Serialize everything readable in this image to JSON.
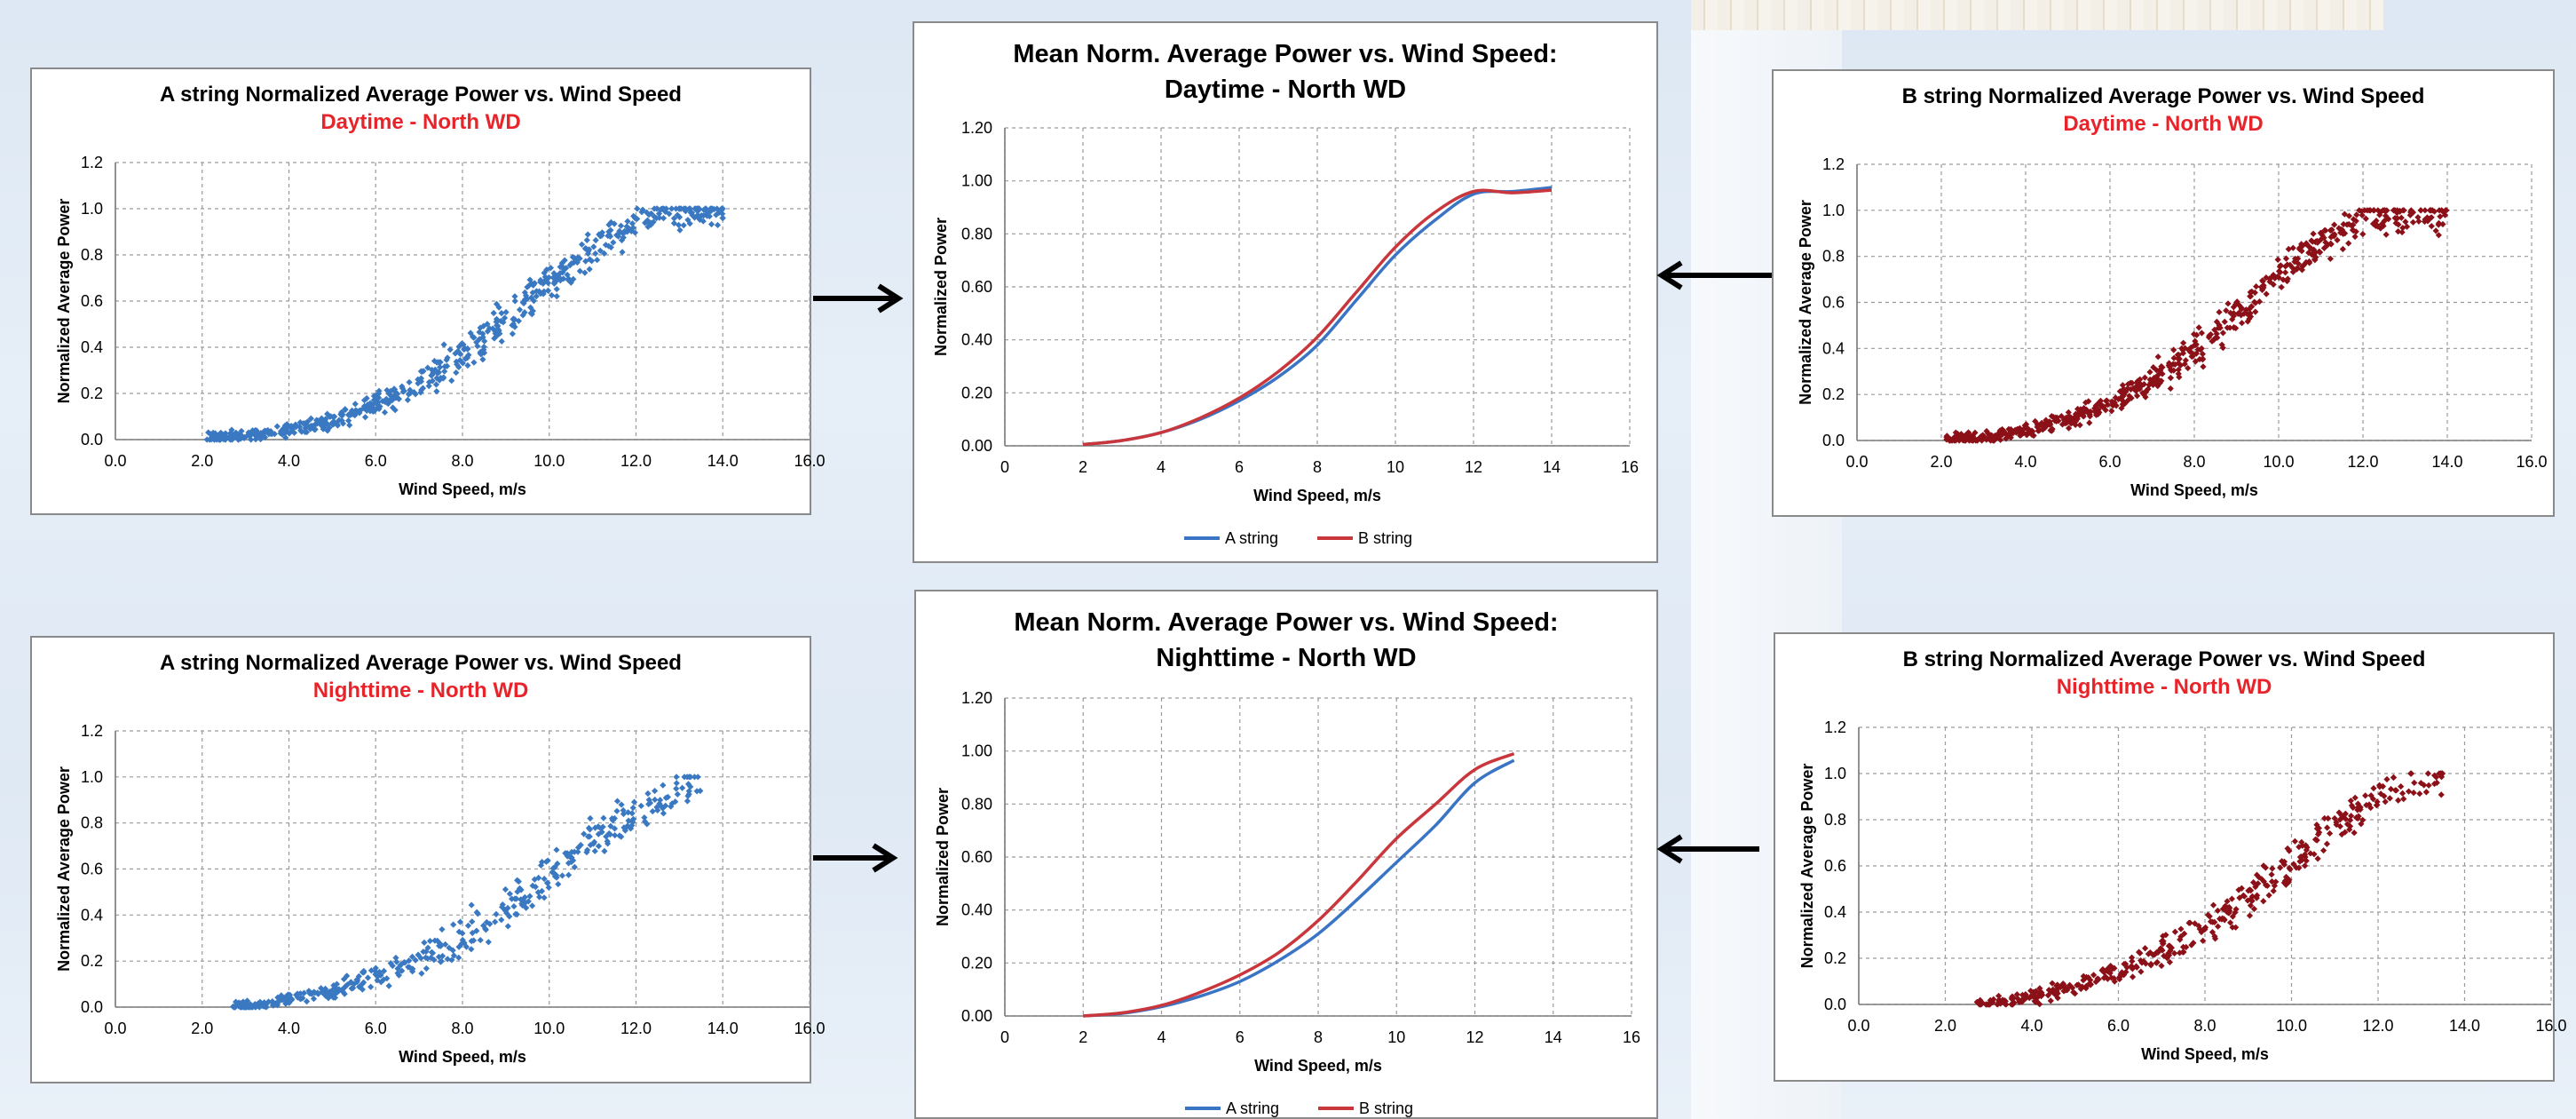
{
  "colors": {
    "a_scatter": "#3a79c2",
    "b_scatter": "#8b1018",
    "a_line": "#3a74c4",
    "b_line": "#c9373d",
    "subtitle_red": "#e8242b",
    "grid": "#9a9a9a"
  },
  "chart_data": [
    {
      "id": "a-day",
      "type": "scatter",
      "title": "A string Normalized Average Power vs. Wind Speed",
      "subtitle": "Daytime - North WD",
      "xlabel": "Wind Speed, m/s",
      "ylabel": "Normalized Average Power",
      "xlim": [
        0,
        16
      ],
      "ylim": [
        0,
        1.2
      ],
      "xticks": [
        "0.0",
        "2.0",
        "4.0",
        "6.0",
        "8.0",
        "10.0",
        "12.0",
        "14.0",
        "16.0"
      ],
      "yticks": [
        "0.0",
        "0.2",
        "0.4",
        "0.6",
        "0.8",
        "1.0",
        "1.2"
      ],
      "grid": true,
      "series": [
        {
          "x_min": 2.1,
          "x_max": 14.0,
          "count": 650,
          "spread": 0.055,
          "trend": [
            [
              2.1,
              0.005
            ],
            [
              3,
              0.015
            ],
            [
              4,
              0.04
            ],
            [
              5,
              0.08
            ],
            [
              6,
              0.15
            ],
            [
              7,
              0.24
            ],
            [
              8,
              0.37
            ],
            [
              9,
              0.52
            ],
            [
              10,
              0.67
            ],
            [
              11,
              0.82
            ],
            [
              12,
              0.95
            ],
            [
              12.5,
              0.98
            ],
            [
              14,
              1.0
            ]
          ]
        }
      ]
    },
    {
      "id": "b-day",
      "type": "scatter",
      "title": "B string Normalized Average Power vs. Wind Speed",
      "subtitle": "Daytime - North WD",
      "xlabel": "Wind Speed, m/s",
      "ylabel": "Normalized Average Power",
      "xlim": [
        0,
        16
      ],
      "ylim": [
        0,
        1.2
      ],
      "xticks": [
        "0.0",
        "2.0",
        "4.0",
        "6.0",
        "8.0",
        "10.0",
        "12.0",
        "14.0",
        "16.0"
      ],
      "yticks": [
        "0.0",
        "0.2",
        "0.4",
        "0.6",
        "0.8",
        "1.0",
        "1.2"
      ],
      "grid": true,
      "series": [
        {
          "x_min": 2.1,
          "x_max": 14.0,
          "count": 650,
          "spread": 0.055,
          "trend": [
            [
              2.1,
              0.005
            ],
            [
              3,
              0.015
            ],
            [
              4,
              0.045
            ],
            [
              5,
              0.09
            ],
            [
              6,
              0.16
            ],
            [
              7,
              0.26
            ],
            [
              8,
              0.39
            ],
            [
              9,
              0.55
            ],
            [
              10,
              0.71
            ],
            [
              11,
              0.86
            ],
            [
              12,
              0.97
            ],
            [
              12.5,
              0.98
            ],
            [
              14,
              0.98
            ]
          ]
        }
      ]
    },
    {
      "id": "a-night",
      "type": "scatter",
      "title": "A string Normalized Average Power vs. Wind Speed",
      "subtitle": "Nighttime - North WD",
      "xlabel": "Wind Speed, m/s",
      "ylabel": "Normalized Average Power",
      "xlim": [
        0,
        16
      ],
      "ylim": [
        0,
        1.2
      ],
      "xticks": [
        "0.0",
        "2.0",
        "4.0",
        "6.0",
        "8.0",
        "10.0",
        "12.0",
        "14.0",
        "16.0"
      ],
      "yticks": [
        "0.0",
        "0.2",
        "0.4",
        "0.6",
        "0.8",
        "1.0",
        "1.2"
      ],
      "grid": true,
      "series": [
        {
          "x_min": 2.7,
          "x_max": 13.5,
          "count": 420,
          "spread": 0.06,
          "trend": [
            [
              2.7,
              0.005
            ],
            [
              3.5,
              0.01
            ],
            [
              4,
              0.03
            ],
            [
              5,
              0.07
            ],
            [
              6,
              0.13
            ],
            [
              7,
              0.2
            ],
            [
              8,
              0.3
            ],
            [
              9,
              0.43
            ],
            [
              10,
              0.57
            ],
            [
              11,
              0.72
            ],
            [
              12,
              0.86
            ],
            [
              13.5,
              1.0
            ]
          ]
        }
      ]
    },
    {
      "id": "b-night",
      "type": "scatter",
      "title": "B string Normalized Average Power vs. Wind Speed",
      "subtitle": "Nighttime - North WD",
      "xlabel": "Wind Speed, m/s",
      "ylabel": "Normalized Average Power",
      "xlim": [
        0,
        16
      ],
      "ylim": [
        0,
        1.2
      ],
      "xticks": [
        "0.0",
        "2.0",
        "4.0",
        "6.0",
        "8.0",
        "10.0",
        "12.0",
        "14.0",
        "16.0"
      ],
      "yticks": [
        "0.0",
        "0.2",
        "0.4",
        "0.6",
        "0.8",
        "1.0",
        "1.2"
      ],
      "grid": true,
      "series": [
        {
          "x_min": 2.7,
          "x_max": 13.5,
          "count": 420,
          "spread": 0.06,
          "trend": [
            [
              2.7,
              0.005
            ],
            [
              3.5,
              0.015
            ],
            [
              4,
              0.035
            ],
            [
              5,
              0.08
            ],
            [
              6,
              0.14
            ],
            [
              7,
              0.22
            ],
            [
              8,
              0.33
            ],
            [
              9,
              0.47
            ],
            [
              10,
              0.62
            ],
            [
              11,
              0.77
            ],
            [
              12,
              0.9
            ],
            [
              13.5,
              1.0
            ]
          ]
        }
      ]
    },
    {
      "id": "mean-day",
      "type": "line",
      "title_lines": [
        "Mean Norm. Average  Power vs. Wind Speed:",
        "Daytime - North WD"
      ],
      "xlabel": "Wind Speed, m/s",
      "ylabel": "Normalized Power",
      "xlim": [
        0,
        16
      ],
      "ylim": [
        0,
        1.2
      ],
      "xticks": [
        "0",
        "2",
        "4",
        "6",
        "8",
        "10",
        "12",
        "14",
        "16"
      ],
      "yticks": [
        "0.00",
        "0.20",
        "0.40",
        "0.60",
        "0.80",
        "1.00",
        "1.20"
      ],
      "grid": true,
      "legend_position": "bottom",
      "series": [
        {
          "name": "A string",
          "x": [
            2,
            3,
            4,
            5,
            6,
            7,
            8,
            9,
            10,
            11,
            12,
            13,
            14
          ],
          "y": [
            0.005,
            0.02,
            0.05,
            0.1,
            0.17,
            0.26,
            0.38,
            0.55,
            0.72,
            0.85,
            0.95,
            0.96,
            0.975
          ]
        },
        {
          "name": "B string",
          "x": [
            2,
            3,
            4,
            5,
            6,
            7,
            8,
            9,
            10,
            11,
            12,
            13,
            14
          ],
          "y": [
            0.005,
            0.02,
            0.05,
            0.105,
            0.18,
            0.28,
            0.41,
            0.58,
            0.75,
            0.88,
            0.96,
            0.955,
            0.965
          ]
        }
      ]
    },
    {
      "id": "mean-night",
      "type": "line",
      "title_lines": [
        "Mean Norm. Average Power vs. Wind Speed:",
        "Nighttime - North WD"
      ],
      "xlabel": "Wind Speed, m/s",
      "ylabel": "Normalized Power",
      "xlim": [
        0,
        16
      ],
      "ylim": [
        0,
        1.2
      ],
      "xticks": [
        "0",
        "2",
        "4",
        "6",
        "8",
        "10",
        "12",
        "14",
        "16"
      ],
      "yticks": [
        "0.00",
        "0.20",
        "0.40",
        "0.60",
        "0.80",
        "1.00",
        "1.20"
      ],
      "grid": true,
      "legend_position": "bottom",
      "series": [
        {
          "name": "A string",
          "x": [
            2,
            3,
            4,
            5,
            6,
            7,
            8,
            9,
            10,
            11,
            12,
            13
          ],
          "y": [
            0.0,
            0.01,
            0.035,
            0.075,
            0.13,
            0.21,
            0.31,
            0.44,
            0.58,
            0.72,
            0.88,
            0.965
          ]
        },
        {
          "name": "B string",
          "x": [
            2,
            3,
            4,
            5,
            6,
            7,
            8,
            9,
            10,
            11,
            12,
            13
          ],
          "y": [
            0.0,
            0.012,
            0.04,
            0.09,
            0.155,
            0.24,
            0.36,
            0.51,
            0.67,
            0.8,
            0.93,
            0.99
          ]
        }
      ]
    }
  ]
}
